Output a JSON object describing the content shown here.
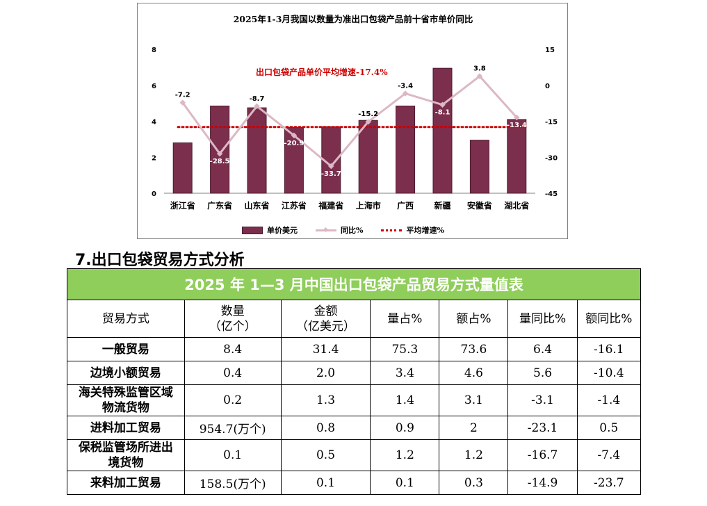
{
  "chart_data": {
    "type": "bar",
    "title": "2025年1-3月我国以数量为准出口包袋产品前十省市单价同比",
    "categories": [
      "浙江省",
      "广东省",
      "山东省",
      "江苏省",
      "福建省",
      "上海市",
      "广西",
      "新疆",
      "安徽省",
      "湖北省"
    ],
    "series": [
      {
        "name": "单价美元",
        "type": "bar",
        "axis": "left",
        "color": "#7b2f4d",
        "values": [
          2.8,
          4.85,
          4.75,
          3.65,
          3.7,
          4.05,
          4.85,
          6.95,
          2.95,
          4.1
        ]
      },
      {
        "name": "同比%",
        "type": "line",
        "axis": "right",
        "color": "#dcb8c4",
        "values": [
          -7.2,
          -28.5,
          -8.7,
          -20.9,
          -33.7,
          -15.2,
          -3.4,
          -8.1,
          3.8,
          -13.4
        ]
      },
      {
        "name": "平均增速%",
        "type": "line",
        "axis": "right",
        "color": "#cc0000",
        "style": "dotted",
        "values": [
          -17.4,
          -17.4,
          -17.4,
          -17.4,
          -17.4,
          -17.4,
          -17.4,
          -17.4,
          -17.4,
          -17.4
        ]
      }
    ],
    "data_labels": [
      "-7.2",
      "-28.5",
      "-8.7",
      "-20.9",
      "-33.7",
      "-15.2",
      "-3.4",
      "-8.1",
      "3.8",
      "-13.4"
    ],
    "annotation": "出口包袋产品单价平均增速-17.4%",
    "ylim_left": [
      0,
      8
    ],
    "yticks_left": [
      "0",
      "2",
      "4",
      "6",
      "8"
    ],
    "ylim_right": [
      -45,
      15
    ],
    "yticks_right": [
      "-45",
      "-30",
      "-15",
      "0",
      "15"
    ],
    "legend_position": "bottom",
    "grid": false
  },
  "section_title": "7.出口包袋贸易方式分析",
  "table": {
    "caption": "2025 年 1—3 月中国出口包袋产品贸易方式量值表",
    "headers": [
      "贸易方式",
      "数量\n（亿个）",
      "金额\n（亿美元）",
      "量占%",
      "额占%",
      "量同比%",
      "额同比%"
    ],
    "rows": [
      [
        "一般贸易",
        "8.4",
        "31.4",
        "75.3",
        "73.6",
        "6.4",
        "-16.1"
      ],
      [
        "边境小额贸易",
        "0.4",
        "2.0",
        "3.4",
        "4.6",
        "5.6",
        "-10.4"
      ],
      [
        "海关特殊监管区域\n物流货物",
        "0.2",
        "1.3",
        "1.4",
        "3.1",
        "-3.1",
        "-1.4"
      ],
      [
        "进料加工贸易",
        "954.7(万个)",
        "0.8",
        "0.9",
        "2",
        "-23.1",
        "0.5"
      ],
      [
        "保税监管场所进出\n境货物",
        "0.1",
        "0.5",
        "1.2",
        "1.2",
        "-16.7",
        "-7.4"
      ],
      [
        "来料加工贸易",
        "158.5(万个)",
        "0.1",
        "0.1",
        "0.3",
        "-14.9",
        "-23.7"
      ]
    ]
  }
}
